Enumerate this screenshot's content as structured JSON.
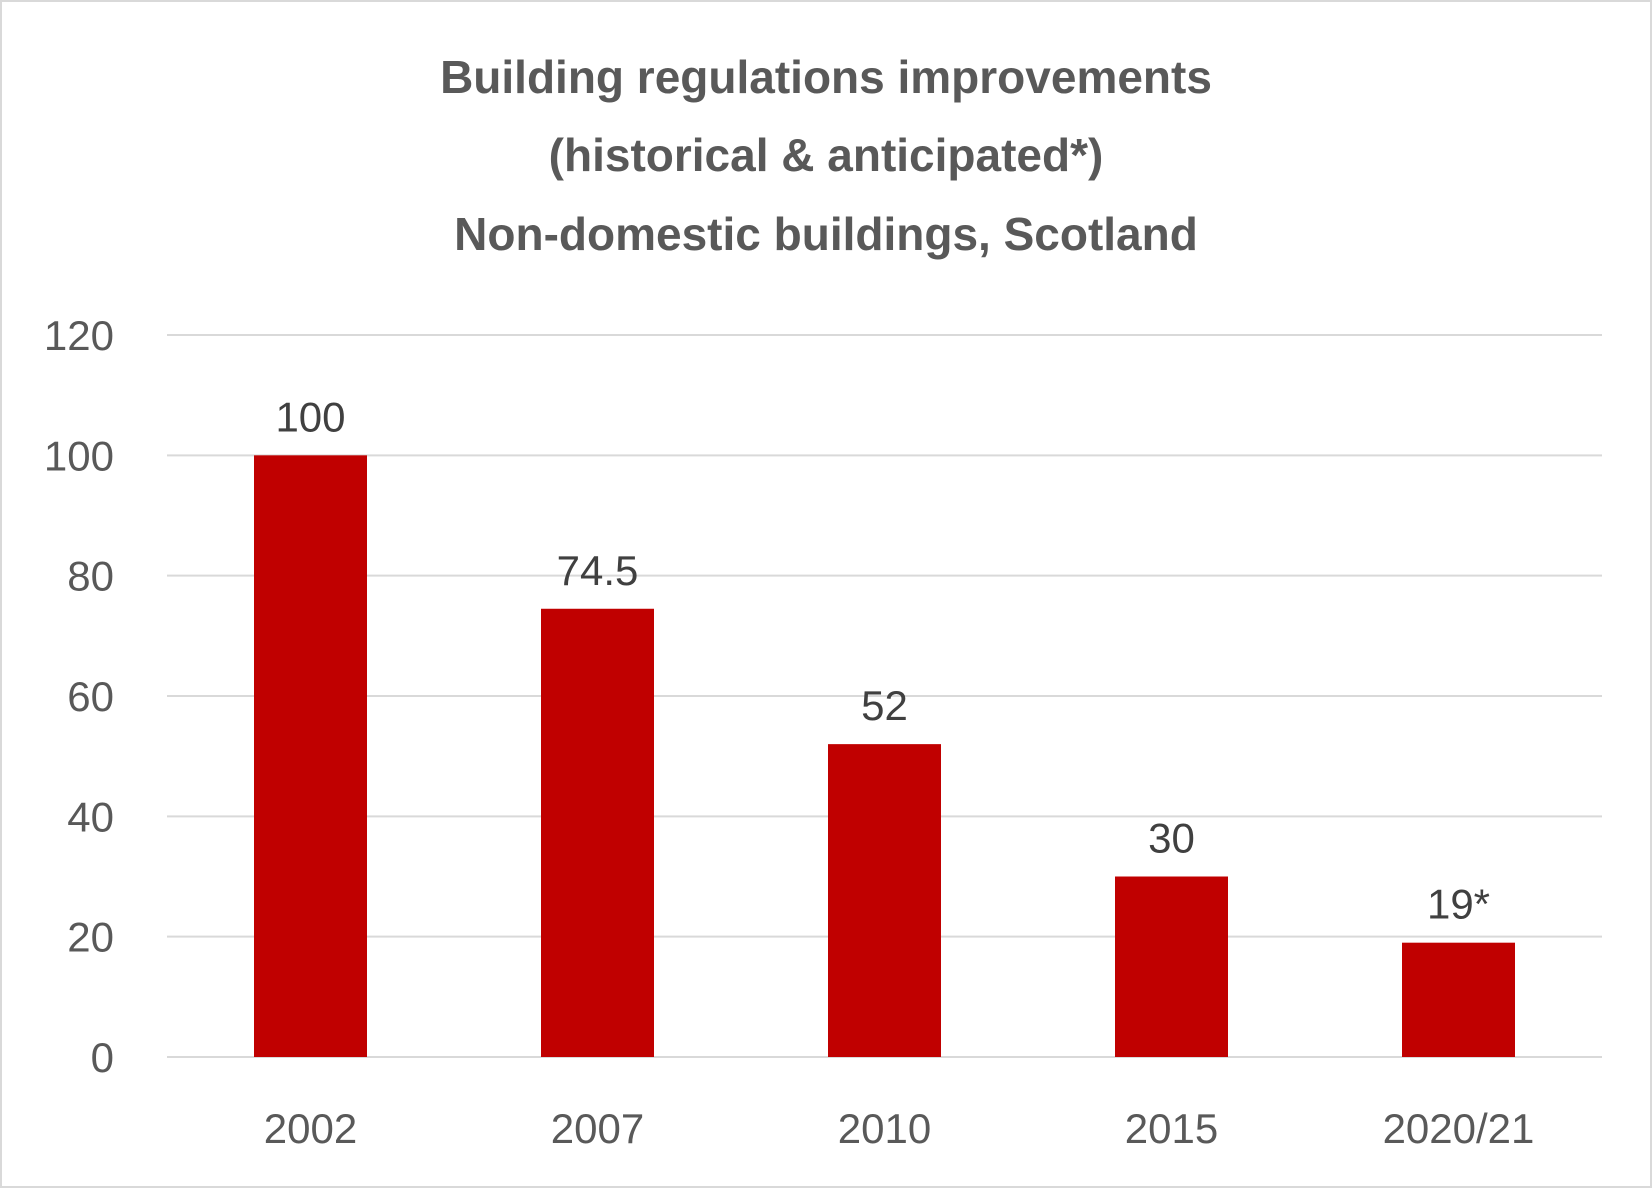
{
  "chart_data": {
    "type": "bar",
    "title_lines": [
      "Building regulations improvements",
      "(historical & anticipated*)",
      "Non-domestic buildings, Scotland"
    ],
    "categories": [
      "2002",
      "2007",
      "2010",
      "2015",
      "2020/21"
    ],
    "values": [
      100,
      74.5,
      52,
      30,
      19
    ],
    "data_labels": [
      "100",
      "74.5",
      "52",
      "30",
      "19*"
    ],
    "y_ticks": [
      "0",
      "20",
      "40",
      "60",
      "80",
      "100",
      "120"
    ],
    "ylim": [
      0,
      120
    ],
    "grid": true,
    "legend": "none",
    "bar_color": "#c00000"
  }
}
